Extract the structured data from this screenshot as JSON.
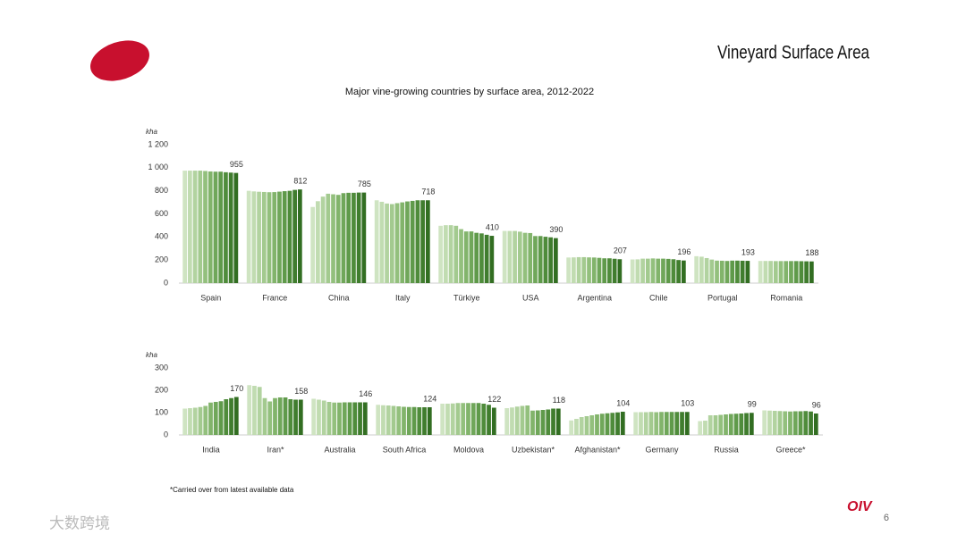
{
  "header": {
    "title": "Vineyard Surface Area",
    "subtitle": "Major vine-growing countries by surface area, 2012-2022"
  },
  "chart_data": [
    {
      "type": "bar",
      "y_label": "kha",
      "categories": [
        "Spain",
        "France",
        "China",
        "Italy",
        "Türkiye",
        "USA",
        "Argentina",
        "Chile",
        "Portugal",
        "Romania"
      ],
      "values": [
        [
          975,
          975,
          975,
          975,
          972,
          968,
          966,
          966,
          961,
          958,
          955
        ],
        [
          800,
          795,
          792,
          790,
          788,
          789,
          793,
          797,
          800,
          808,
          812
        ],
        [
          660,
          710,
          750,
          775,
          770,
          765,
          780,
          783,
          783,
          785,
          785
        ],
        [
          718,
          705,
          690,
          685,
          693,
          700,
          708,
          713,
          718,
          718,
          718
        ],
        [
          497,
          502,
          502,
          497,
          468,
          448,
          448,
          436,
          431,
          419,
          410
        ],
        [
          452,
          452,
          452,
          446,
          436,
          434,
          408,
          408,
          402,
          397,
          390
        ],
        [
          222,
          223,
          225,
          225,
          223,
          222,
          219,
          215,
          215,
          211,
          207
        ],
        [
          205,
          206,
          212,
          212,
          214,
          212,
          212,
          210,
          207,
          200,
          196
        ],
        [
          233,
          229,
          217,
          204,
          195,
          194,
          192,
          195,
          195,
          194,
          193
        ],
        [
          192,
          192,
          192,
          191,
          191,
          191,
          191,
          191,
          190,
          189,
          188
        ]
      ],
      "colors": [
        "#cfe4c2",
        "#c1dcb1",
        "#b2d3a0",
        "#a3ca8f",
        "#93c07d",
        "#82b46b",
        "#70a75a",
        "#5f9a4a",
        "#4f8c3b",
        "#407d2e",
        "#326e22"
      ],
      "ylim": [
        0,
        1200
      ],
      "yticks": [
        0,
        200,
        400,
        600,
        800,
        {
          "value": 1000,
          "label": "1 000"
        },
        {
          "value": 1200,
          "label": "1 200"
        }
      ]
    },
    {
      "type": "bar",
      "y_label": "kha",
      "categories": [
        "India",
        "Iran*",
        "Australia",
        "South Africa",
        "Moldova",
        "Uzbekistan*",
        "Afghanistan*",
        "Germany",
        "Russia",
        "Greece*"
      ],
      "values": [
        [
          118,
          120,
          122,
          125,
          130,
          145,
          148,
          151,
          160,
          165,
          170
        ],
        [
          223,
          220,
          215,
          165,
          150,
          165,
          168,
          168,
          160,
          158,
          158
        ],
        [
          162,
          158,
          154,
          148,
          145,
          145,
          146,
          146,
          146,
          146,
          146
        ],
        [
          135,
          133,
          132,
          130,
          128,
          126,
          125,
          125,
          124,
          124,
          124
        ],
        [
          140,
          140,
          141,
          143,
          143,
          143,
          143,
          143,
          140,
          135,
          122
        ],
        [
          120,
          123,
          127,
          130,
          132,
          109,
          110,
          112,
          114,
          118,
          118
        ],
        [
          65,
          72,
          80,
          84,
          88,
          92,
          95,
          97,
          99,
          101,
          104
        ],
        [
          102,
          102,
          102,
          103,
          102,
          103,
          103,
          103,
          103,
          103,
          103
        ],
        [
          62,
          64,
          88,
          88,
          90,
          92,
          94,
          95,
          96,
          98,
          99
        ],
        [
          110,
          109,
          108,
          107,
          106,
          105,
          106,
          106,
          107,
          105,
          96
        ]
      ],
      "colors": [
        "#cfe4c2",
        "#c1dcb1",
        "#b2d3a0",
        "#a3ca8f",
        "#93c07d",
        "#82b46b",
        "#70a75a",
        "#5f9a4a",
        "#4f8c3b",
        "#407d2e",
        "#326e22"
      ],
      "ylim": [
        0,
        300
      ],
      "yticks": [
        0,
        100,
        200,
        300
      ]
    }
  ],
  "footnote": "*Carried over from latest available data",
  "logo": "OIV",
  "page_number": "6",
  "watermark": "大数跨境"
}
